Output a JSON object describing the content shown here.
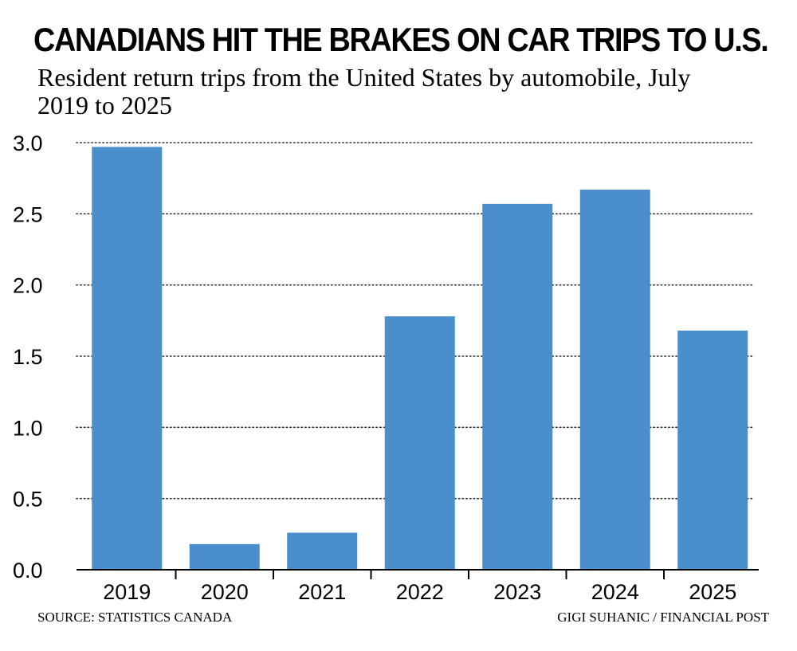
{
  "header": {
    "title": "CANADIANS HIT THE BRAKES ON CAR TRIPS TO U.S.",
    "subtitle": "Resident return trips from the United States by automobile, July 2019 to 2025"
  },
  "footer": {
    "source": "SOURCE: STATISTICS CANADA",
    "credit": "GIGI SUHANIC / FINANCIAL POST"
  },
  "chart_data": {
    "type": "bar",
    "categories": [
      "2019",
      "2020",
      "2021",
      "2022",
      "2023",
      "2024",
      "2025"
    ],
    "values": [
      2.97,
      0.18,
      0.26,
      1.78,
      2.57,
      2.67,
      1.68
    ],
    "ylim": [
      0,
      3.0
    ],
    "yticks": [
      "0.0",
      "0.5",
      "1.0",
      "1.5",
      "2.0",
      "2.5",
      "3.0"
    ],
    "grid": "horizontal dotted",
    "colors": {
      "bar": "#4a8fcb",
      "grid": "#333333",
      "axis": "#000000",
      "text": "#000000"
    }
  }
}
